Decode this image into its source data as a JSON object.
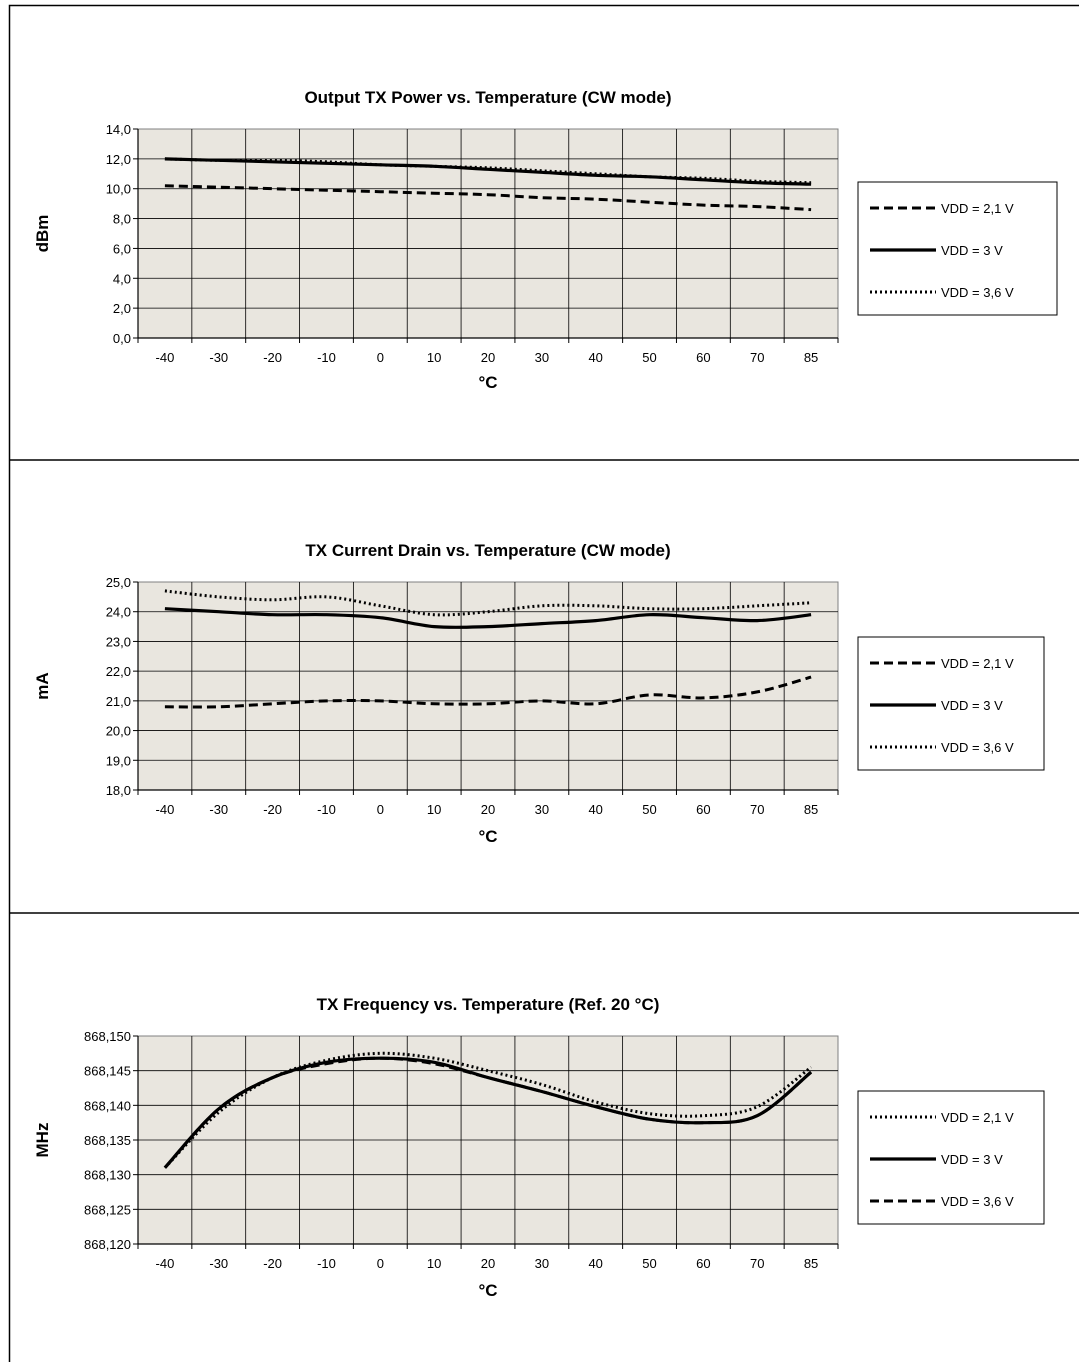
{
  "chart_data": [
    {
      "type": "line",
      "title": "Output TX Power vs. Temperature (CW mode)",
      "xlabel": "°C",
      "ylabel": "dBm",
      "categories": [
        "-40",
        "-30",
        "-20",
        "-10",
        "0",
        "10",
        "20",
        "30",
        "40",
        "50",
        "60",
        "70",
        "85"
      ],
      "y_ticks": [
        "0,0",
        "2,0",
        "4,0",
        "6,0",
        "8,0",
        "10,0",
        "12,0",
        "14,0"
      ],
      "ylim": [
        0,
        14
      ],
      "grid": true,
      "legend_position": "right",
      "series": [
        {
          "name": "VDD = 2,1 V",
          "style": "dashed",
          "values": [
            10.2,
            10.1,
            10.0,
            9.9,
            9.8,
            9.7,
            9.6,
            9.4,
            9.3,
            9.1,
            8.9,
            8.8,
            8.6
          ]
        },
        {
          "name": "VDD = 3 V",
          "style": "solid",
          "values": [
            12.0,
            11.9,
            11.8,
            11.7,
            11.6,
            11.5,
            11.3,
            11.1,
            10.9,
            10.8,
            10.6,
            10.4,
            10.3
          ]
        },
        {
          "name": "VDD = 3,6 V",
          "style": "dotted",
          "values": [
            12.0,
            11.9,
            11.9,
            11.8,
            11.6,
            11.5,
            11.4,
            11.2,
            11.0,
            10.8,
            10.7,
            10.5,
            10.4
          ]
        }
      ]
    },
    {
      "type": "line",
      "title": "TX Current Drain vs. Temperature (CW mode)",
      "xlabel": "°C",
      "ylabel": "mA",
      "categories": [
        "-40",
        "-30",
        "-20",
        "-10",
        "0",
        "10",
        "20",
        "30",
        "40",
        "50",
        "60",
        "70",
        "85"
      ],
      "y_ticks": [
        "18,0",
        "19,0",
        "20,0",
        "21,0",
        "22,0",
        "23,0",
        "24,0",
        "25,0"
      ],
      "ylim": [
        18,
        25
      ],
      "grid": true,
      "legend_position": "right",
      "series": [
        {
          "name": "VDD = 2,1 V",
          "style": "dashed",
          "values": [
            20.8,
            20.8,
            20.9,
            21.0,
            21.0,
            20.9,
            20.9,
            21.0,
            20.9,
            21.2,
            21.1,
            21.3,
            21.8
          ]
        },
        {
          "name": "VDD = 3 V",
          "style": "solid",
          "values": [
            24.1,
            24.0,
            23.9,
            23.9,
            23.8,
            23.5,
            23.5,
            23.6,
            23.7,
            23.9,
            23.8,
            23.7,
            23.9
          ]
        },
        {
          "name": "VDD = 3,6 V",
          "style": "dotted",
          "values": [
            24.7,
            24.5,
            24.4,
            24.5,
            24.2,
            23.9,
            24.0,
            24.2,
            24.2,
            24.1,
            24.1,
            24.2,
            24.3
          ]
        }
      ]
    },
    {
      "type": "line",
      "title": "TX Frequency vs. Temperature (Ref. 20 °C)",
      "xlabel": "°C",
      "ylabel": "MHz",
      "categories": [
        "-40",
        "-30",
        "-20",
        "-10",
        "0",
        "10",
        "20",
        "30",
        "40",
        "50",
        "60",
        "70",
        "85"
      ],
      "y_ticks": [
        "868,120",
        "868,125",
        "868,130",
        "868,135",
        "868,140",
        "868,145",
        "868,150"
      ],
      "ylim": [
        868.12,
        868.15
      ],
      "grid": true,
      "legend_position": "right",
      "series": [
        {
          "name": "VDD = 2,1 V",
          "style": "dotted",
          "values": [
            868.131,
            868.139,
            868.144,
            868.1465,
            868.1475,
            868.1468,
            868.145,
            868.143,
            868.1405,
            868.1388,
            868.1385,
            868.1398,
            868.1455
          ]
        },
        {
          "name": "VDD = 3 V",
          "style": "solid",
          "values": [
            868.131,
            868.1395,
            868.144,
            868.1462,
            868.1468,
            868.1462,
            868.144,
            868.142,
            868.1398,
            868.138,
            868.1375,
            868.1385,
            868.1448
          ]
        },
        {
          "name": "VDD = 3,6 V",
          "style": "dashed",
          "values": [
            868.131,
            868.1395,
            868.144,
            868.146,
            868.1468,
            868.146,
            868.144,
            868.142,
            868.1398,
            868.138,
            868.1375,
            868.1385,
            868.1448
          ]
        }
      ]
    }
  ]
}
